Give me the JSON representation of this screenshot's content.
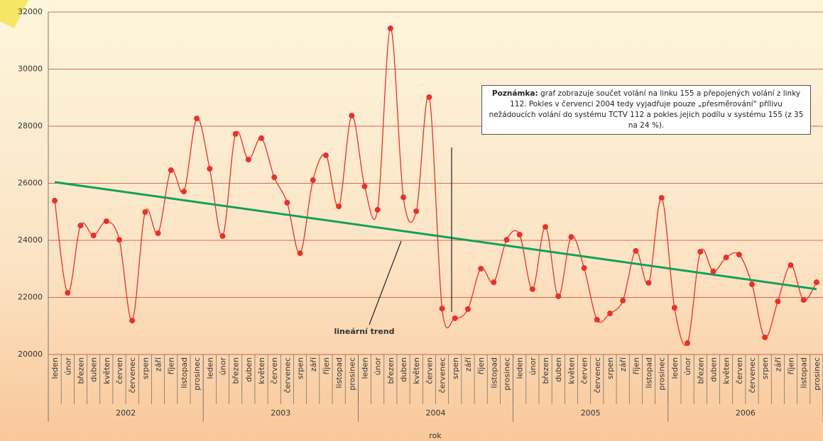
{
  "chart_data": {
    "type": "line",
    "categories": [
      "leden",
      "únor",
      "březen",
      "duben",
      "květen",
      "červen",
      "červenec",
      "srpen",
      "září",
      "říjen",
      "listopad",
      "prosinec",
      "leden",
      "únor",
      "březen",
      "duben",
      "květen",
      "červen",
      "červenec",
      "srpen",
      "září",
      "říjen",
      "listopad",
      "prosinec",
      "leden",
      "únor",
      "březen",
      "duben",
      "květen",
      "červen",
      "červenec",
      "srpen",
      "září",
      "říjen",
      "listopad",
      "prosinec",
      "leden",
      "únor",
      "březen",
      "duben",
      "květen",
      "červen",
      "červenec",
      "srpen",
      "září",
      "říjen",
      "listopad",
      "prosinec",
      "leden",
      "únor",
      "březen",
      "duben",
      "květen",
      "červen",
      "červenec",
      "srpen",
      "září",
      "říjen",
      "listopad",
      "prosinec"
    ],
    "years": [
      "2002",
      "2003",
      "2004",
      "2005",
      "2006"
    ],
    "x_label": "rok",
    "series": [
      {
        "color": "#e8312a",
        "values": [
          25390,
          22160,
          24520,
          24170,
          24670,
          24020,
          21190,
          24990,
          24250,
          26460,
          25710,
          28270,
          26510,
          24150,
          27730,
          26830,
          27580,
          26210,
          25320,
          23550,
          26110,
          26980,
          25190,
          28370,
          25890,
          25070,
          31430,
          25510,
          25020,
          29020,
          21610,
          21270,
          21590,
          23010,
          22530,
          24020,
          24200,
          22290,
          24470,
          22040,
          24120,
          23030,
          21220,
          21440,
          21890,
          23630,
          22510,
          25490,
          21640,
          20400,
          23600,
          22910,
          23400,
          23500,
          22460,
          20600,
          21860,
          23130,
          21910,
          22530
        ]
      }
    ],
    "trend": {
      "label": "lineární trend",
      "color": "#12a05a",
      "start": 26040,
      "end": 22290
    },
    "note": {
      "bold": "Poznámka:",
      "text": "graf zobrazuje součet volání na linku 155 a přepojených volání z linky 112. Pokles v červenci 2004 tedy vyjadřuje pouze „přesměrování“ přílivu nežádoucích volání do systému TCTV 112 a pokles jejich podílu v systému 155 (z 35 na 24 %)."
    },
    "ylim": [
      20000,
      32000
    ],
    "yticks": [
      20000,
      22000,
      24000,
      26000,
      28000,
      30000,
      32000
    ],
    "grid": true
  }
}
